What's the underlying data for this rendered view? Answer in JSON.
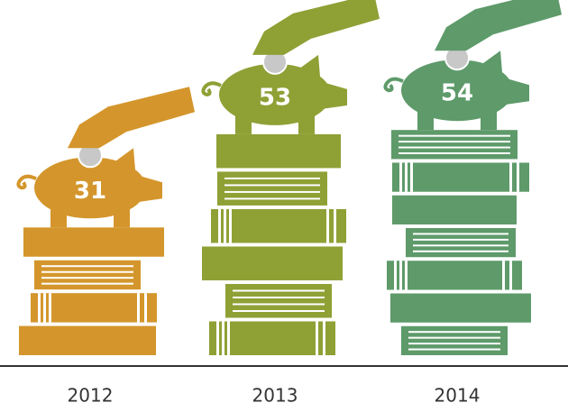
{
  "chart_data": {
    "type": "bar",
    "categories": [
      "2012",
      "2013",
      "2014"
    ],
    "values": [
      31,
      53,
      54
    ],
    "colors": [
      "#d4962c",
      "#8fa035",
      "#5e9a6a"
    ]
  }
}
